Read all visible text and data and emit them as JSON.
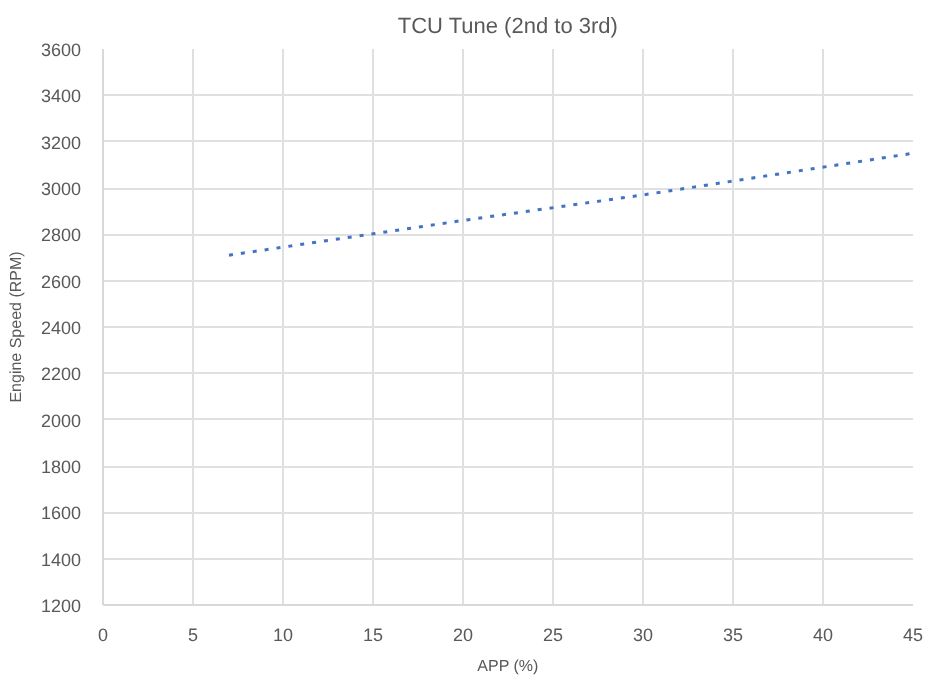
{
  "chart_data": {
    "type": "line",
    "title": "TCU Tune (2nd to 3rd)",
    "xlabel": "APP (%)",
    "ylabel": "Engine Speed (RPM)",
    "x": [
      7,
      20,
      30,
      45
    ],
    "series": [
      {
        "color": "#4472c4",
        "values": [
          2710,
          2860,
          2970,
          3150
        ]
      }
    ],
    "xlim": [
      0,
      45
    ],
    "xticks": [
      0,
      5,
      10,
      15,
      20,
      25,
      30,
      35,
      40,
      45
    ],
    "ylim": [
      1200,
      3600
    ],
    "yticks": [
      1200,
      1400,
      1600,
      1800,
      2000,
      2200,
      2400,
      2600,
      2800,
      3000,
      3200,
      3400,
      3600
    ],
    "grid": true,
    "line_style": "dotted",
    "marker": "none"
  }
}
